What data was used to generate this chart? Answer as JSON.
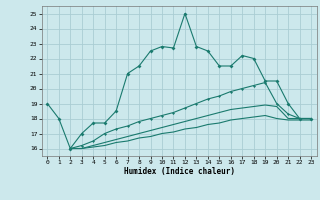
{
  "xlabel": "Humidex (Indice chaleur)",
  "xlim": [
    -0.5,
    23.5
  ],
  "ylim": [
    15.5,
    25.5
  ],
  "yticks": [
    16,
    17,
    18,
    19,
    20,
    21,
    22,
    23,
    24,
    25
  ],
  "xticks": [
    0,
    1,
    2,
    3,
    4,
    5,
    6,
    7,
    8,
    9,
    10,
    11,
    12,
    13,
    14,
    15,
    16,
    17,
    18,
    19,
    20,
    21,
    22,
    23
  ],
  "background_color": "#cce8ec",
  "grid_color": "#aacdd4",
  "line_color": "#1a7a6e",
  "line1_x": [
    0,
    1,
    2,
    3,
    4,
    5,
    6,
    7,
    8,
    9,
    10,
    11,
    12,
    13,
    14,
    15,
    16,
    17,
    18,
    19,
    20,
    21,
    22,
    23
  ],
  "line1_y": [
    19.0,
    18.0,
    16.0,
    17.0,
    17.7,
    17.7,
    18.5,
    21.0,
    21.5,
    22.5,
    22.8,
    22.7,
    25.0,
    22.8,
    22.5,
    21.5,
    21.5,
    22.2,
    22.0,
    20.5,
    20.5,
    19.0,
    18.0,
    18.0
  ],
  "line2_x": [
    2,
    3,
    4,
    5,
    6,
    7,
    8,
    9,
    10,
    11,
    12,
    13,
    14,
    15,
    16,
    17,
    18,
    19,
    20,
    21,
    22,
    23
  ],
  "line2_y": [
    16.0,
    16.2,
    16.5,
    17.0,
    17.3,
    17.5,
    17.8,
    18.0,
    18.2,
    18.4,
    18.7,
    19.0,
    19.3,
    19.5,
    19.8,
    20.0,
    20.2,
    20.4,
    19.0,
    18.3,
    18.0,
    18.0
  ],
  "line3_x": [
    2,
    3,
    4,
    5,
    6,
    7,
    8,
    9,
    10,
    11,
    12,
    13,
    14,
    15,
    16,
    17,
    18,
    19,
    20,
    21,
    22,
    23
  ],
  "line3_y": [
    16.0,
    16.0,
    16.2,
    16.4,
    16.6,
    16.8,
    17.0,
    17.2,
    17.4,
    17.6,
    17.8,
    18.0,
    18.2,
    18.4,
    18.6,
    18.7,
    18.8,
    18.9,
    18.8,
    18.0,
    18.0,
    18.0
  ],
  "line4_x": [
    2,
    3,
    4,
    5,
    6,
    7,
    8,
    9,
    10,
    11,
    12,
    13,
    14,
    15,
    16,
    17,
    18,
    19,
    20,
    21,
    22,
    23
  ],
  "line4_y": [
    16.0,
    16.0,
    16.1,
    16.2,
    16.4,
    16.5,
    16.7,
    16.8,
    17.0,
    17.1,
    17.3,
    17.4,
    17.6,
    17.7,
    17.9,
    18.0,
    18.1,
    18.2,
    18.0,
    17.9,
    17.9,
    17.9
  ]
}
